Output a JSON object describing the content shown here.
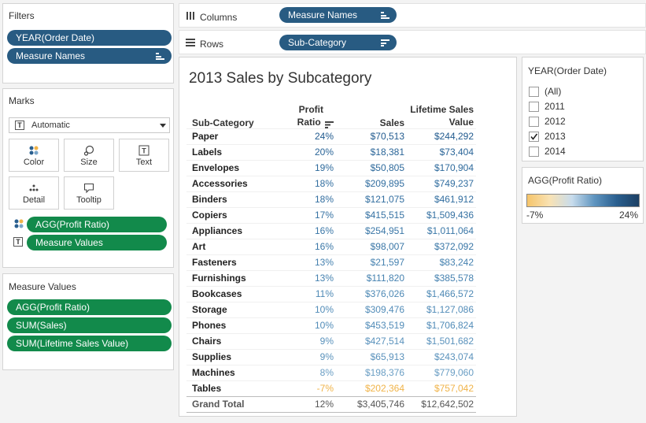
{
  "filters": {
    "title": "Filters",
    "pills": [
      "YEAR(Order Date)",
      "Measure Names"
    ]
  },
  "shelves": {
    "columns_label": "Columns",
    "columns_pill": "Measure Names",
    "rows_label": "Rows",
    "rows_pill": "Sub-Category"
  },
  "marks": {
    "title": "Marks",
    "type": "Automatic",
    "buttons": [
      "Color",
      "Size",
      "Text",
      "Detail",
      "Tooltip"
    ],
    "pills": [
      "AGG(Profit Ratio)",
      "Measure Values"
    ]
  },
  "measure_values": {
    "title": "Measure Values",
    "pills": [
      "AGG(Profit Ratio)",
      "SUM(Sales)",
      "SUM(Lifetime Sales Value)"
    ]
  },
  "view": {
    "title": "2013 Sales by Subcategory",
    "headers": {
      "category": "Sub-Category",
      "profit_line1": "Profit",
      "profit_line2": "Ratio",
      "sales": "Sales",
      "lifetime_line1": "Lifetime Sales",
      "lifetime_line2": "Value"
    },
    "rows": [
      {
        "category": "Paper",
        "ratio": "24%",
        "sales": "$70,513",
        "lifetime": "$244,292",
        "color": "#225b8f"
      },
      {
        "category": "Labels",
        "ratio": "20%",
        "sales": "$18,381",
        "lifetime": "$73,404",
        "color": "#2a6598"
      },
      {
        "category": "Envelopes",
        "ratio": "19%",
        "sales": "$50,805",
        "lifetime": "$170,904",
        "color": "#2e6a9c"
      },
      {
        "category": "Accessories",
        "ratio": "18%",
        "sales": "$209,895",
        "lifetime": "$749,237",
        "color": "#326ea0"
      },
      {
        "category": "Binders",
        "ratio": "18%",
        "sales": "$121,075",
        "lifetime": "$461,912",
        "color": "#326ea0"
      },
      {
        "category": "Copiers",
        "ratio": "17%",
        "sales": "$415,515",
        "lifetime": "$1,509,436",
        "color": "#3672a3"
      },
      {
        "category": "Appliances",
        "ratio": "16%",
        "sales": "$254,951",
        "lifetime": "$1,011,064",
        "color": "#3a77a7"
      },
      {
        "category": "Art",
        "ratio": "16%",
        "sales": "$98,007",
        "lifetime": "$372,092",
        "color": "#3a77a7"
      },
      {
        "category": "Fasteners",
        "ratio": "13%",
        "sales": "$21,597",
        "lifetime": "$83,242",
        "color": "#4682b0"
      },
      {
        "category": "Furnishings",
        "ratio": "13%",
        "sales": "$111,820",
        "lifetime": "$385,578",
        "color": "#4682b0"
      },
      {
        "category": "Bookcases",
        "ratio": "11%",
        "sales": "$376,026",
        "lifetime": "$1,466,572",
        "color": "#4e89b5"
      },
      {
        "category": "Storage",
        "ratio": "10%",
        "sales": "$309,476",
        "lifetime": "$1,127,086",
        "color": "#528cb8"
      },
      {
        "category": "Phones",
        "ratio": "10%",
        "sales": "$453,519",
        "lifetime": "$1,706,824",
        "color": "#528cb8"
      },
      {
        "category": "Chairs",
        "ratio": "9%",
        "sales": "$427,514",
        "lifetime": "$1,501,682",
        "color": "#5a92bc"
      },
      {
        "category": "Supplies",
        "ratio": "9%",
        "sales": "$65,913",
        "lifetime": "$243,074",
        "color": "#5a92bc"
      },
      {
        "category": "Machines",
        "ratio": "8%",
        "sales": "$198,376",
        "lifetime": "$779,060",
        "color": "#6a9ec4"
      },
      {
        "category": "Tables",
        "ratio": "-7%",
        "sales": "$202,364",
        "lifetime": "$757,042",
        "color": "#f0b348"
      }
    ],
    "total": {
      "category": "Grand Total",
      "ratio": "12%",
      "sales": "$3,405,746",
      "lifetime": "$12,642,502"
    }
  },
  "year_filter": {
    "title": "YEAR(Order Date)",
    "options": [
      {
        "label": "(All)",
        "checked": false
      },
      {
        "label": "2011",
        "checked": false
      },
      {
        "label": "2012",
        "checked": false
      },
      {
        "label": "2013",
        "checked": true
      },
      {
        "label": "2014",
        "checked": false
      }
    ]
  },
  "color_legend": {
    "title": "AGG(Profit Ratio)",
    "min": "-7%",
    "max": "24%",
    "colors": [
      "#f5c46a",
      "#f9e2b3",
      "#c8dcec",
      "#5f95c0",
      "#2a5f8f",
      "#1c3f63"
    ]
  }
}
